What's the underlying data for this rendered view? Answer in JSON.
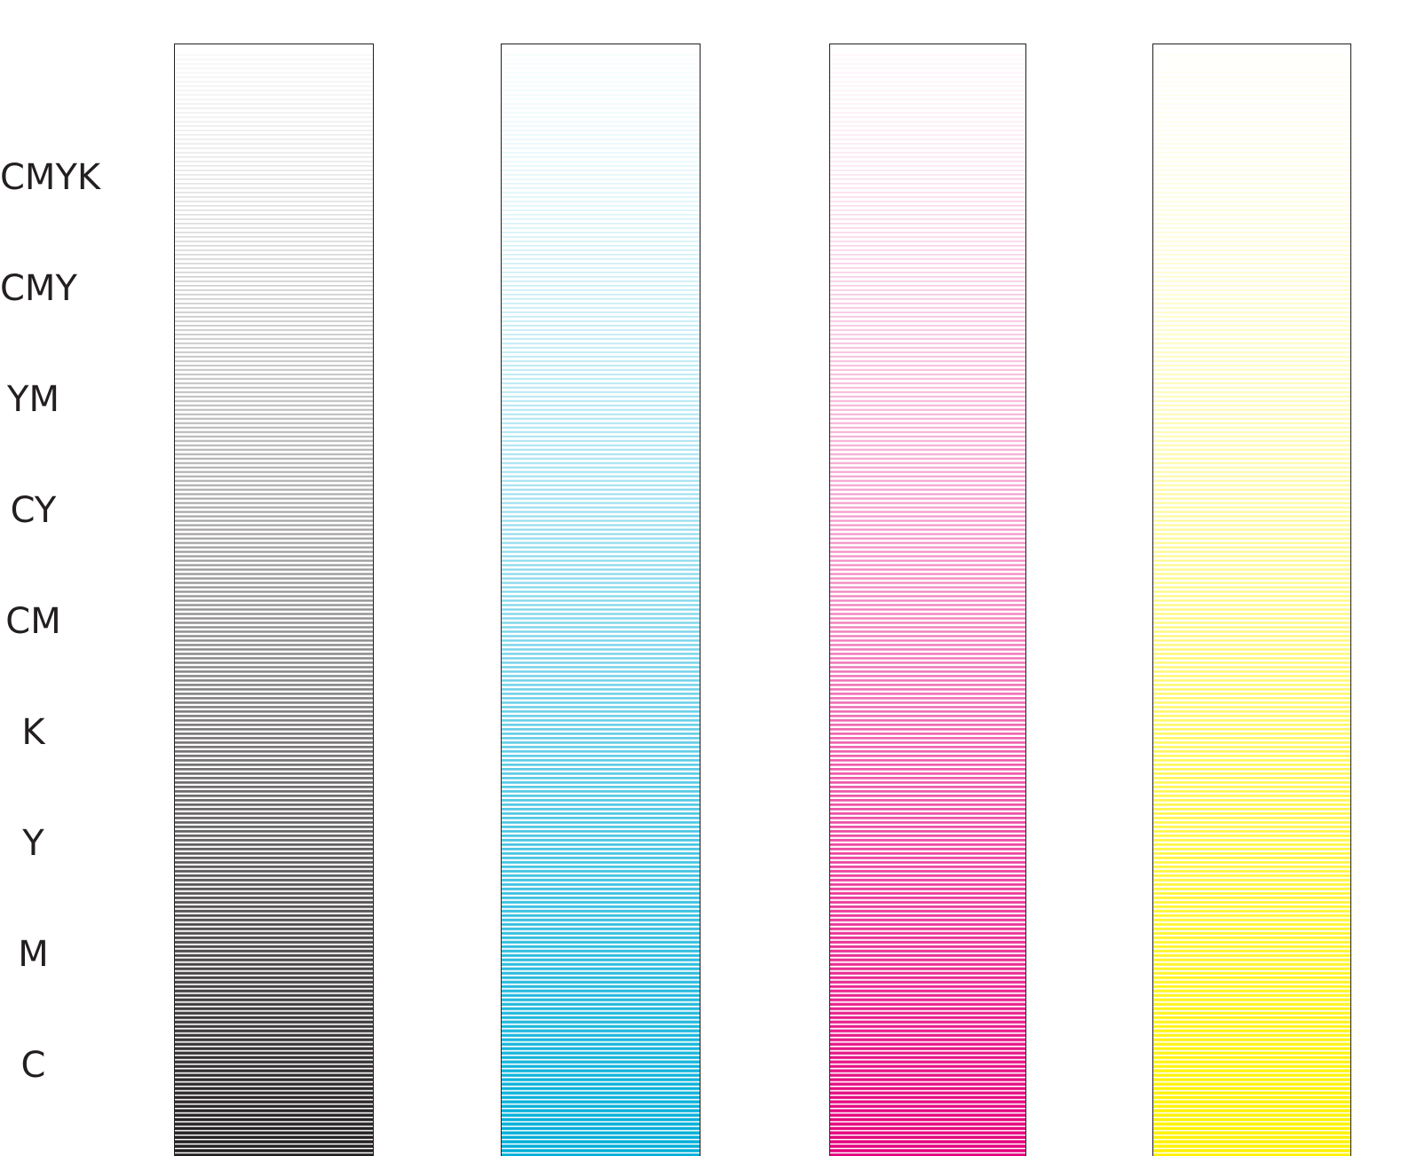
{
  "row_labels": [
    "CMYK",
    "CMY",
    "YM",
    "CY",
    "CM",
    "K",
    "Y",
    "M",
    "C"
  ],
  "strips": [
    {
      "name": "black",
      "color": "#231f20"
    },
    {
      "name": "cyan",
      "color": "#00aed8"
    },
    {
      "name": "magenta",
      "color": "#e4007c"
    },
    {
      "name": "yellow",
      "color": "#fff200"
    }
  ]
}
